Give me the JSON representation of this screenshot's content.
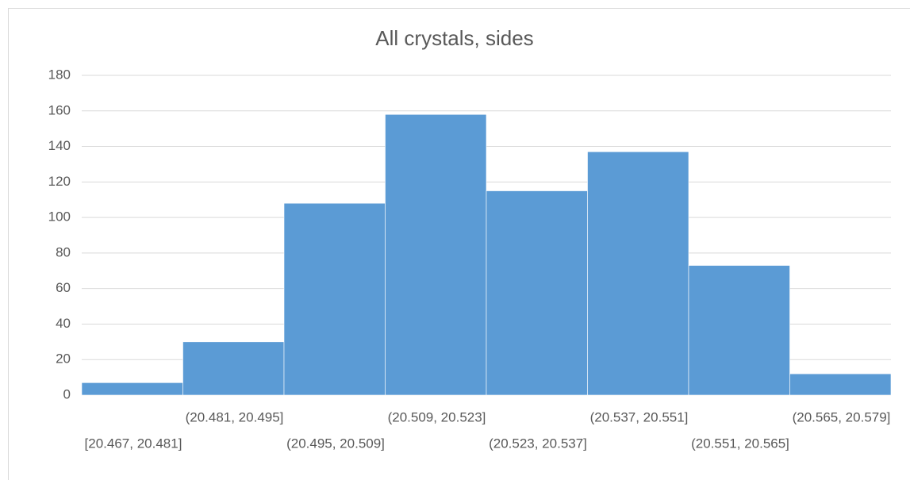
{
  "chart_data": {
    "type": "bar",
    "title": "All crystals, sides",
    "categories": [
      "[20.467, 20.481]",
      "(20.481, 20.495]",
      "(20.495, 20.509]",
      "(20.509, 20.523]",
      "(20.523, 20.537]",
      "(20.537, 20.551]",
      "(20.551, 20.565]",
      "(20.565, 20.579]"
    ],
    "values": [
      7,
      30,
      108,
      158,
      115,
      137,
      73,
      12
    ],
    "color": "#5b9bd5",
    "ylim": [
      0,
      180
    ],
    "yticks": [
      0,
      20,
      40,
      60,
      80,
      100,
      120,
      140,
      160,
      180
    ],
    "grid": true
  }
}
